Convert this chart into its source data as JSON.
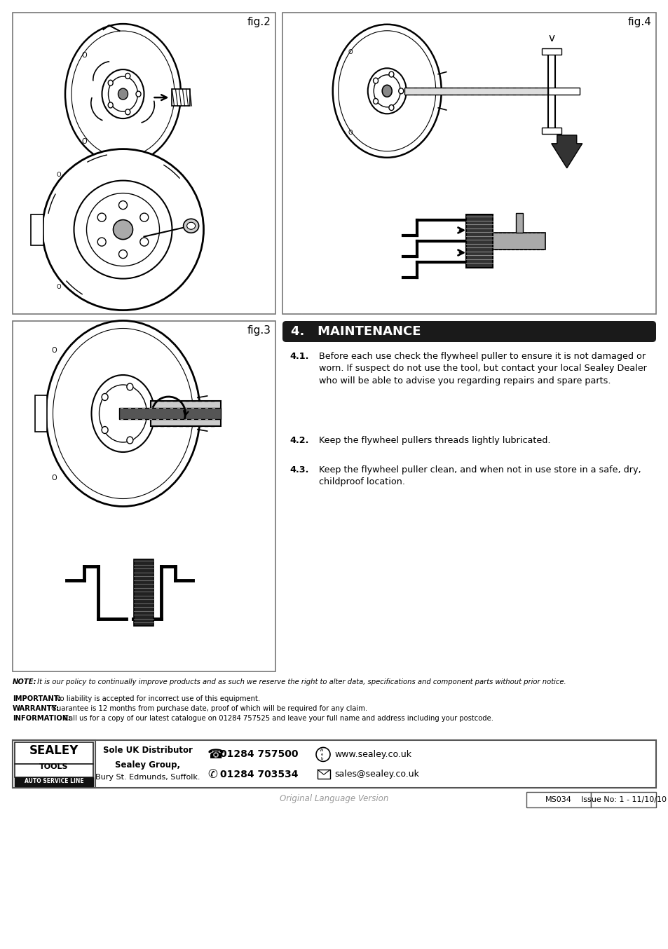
{
  "bg_color": "#ffffff",
  "title": "4.   MAINTENANCE",
  "section_41_label": "4.1.",
  "section_41_text": "Before each use check the flywheel puller to ensure it is not damaged or worn. If suspect do not use the tool, but contact your local Sealey Dealer who will be able to advise you regarding repairs and spare parts.",
  "section_42_label": "4.2.",
  "section_42_text": "Keep the flywheel pullers threads lightly lubricated.",
  "section_43_label": "4.3.",
  "section_43_text": "Keep the flywheel puller clean, and when not in use store in a safe, dry,  childproof location.",
  "fig2_label": "fig.2",
  "fig3_label": "fig.3",
  "fig4_label": "fig.4",
  "note_bold_1": "NOTE:",
  "note_text_1": " It is our policy to continually improve products and as such we reserve the right to alter data, specifications and component parts without prior notice.",
  "note_bold_2": "IMPORTANT:",
  "note_text_2": " No liability is accepted for incorrect use of this equipment.",
  "note_bold_3": "WARRANTY:",
  "note_text_3": " Guarantee is 12 months from purchase date, proof of which will be required for any claim.",
  "note_bold_4": "INFORMATION:",
  "note_text_4": " Call us for a copy of our latest catalogue on 01284 757525 and leave your full name and address including your postcode.",
  "footer_dist_line1": "Sole UK Distributor",
  "footer_dist_line2": "Sealey Group,",
  "footer_dist_line3": "Bury St. Edmunds, Suffolk.",
  "footer_phone1": "01284 757500",
  "footer_phone2": "01284 703534",
  "footer_web": "www.sealey.co.uk",
  "footer_email": "sales@sealey.co.uk",
  "footer_model": "MS034",
  "footer_issue": "Issue No: 1 - 11/10/10",
  "footer_lang": "Original Language Version"
}
